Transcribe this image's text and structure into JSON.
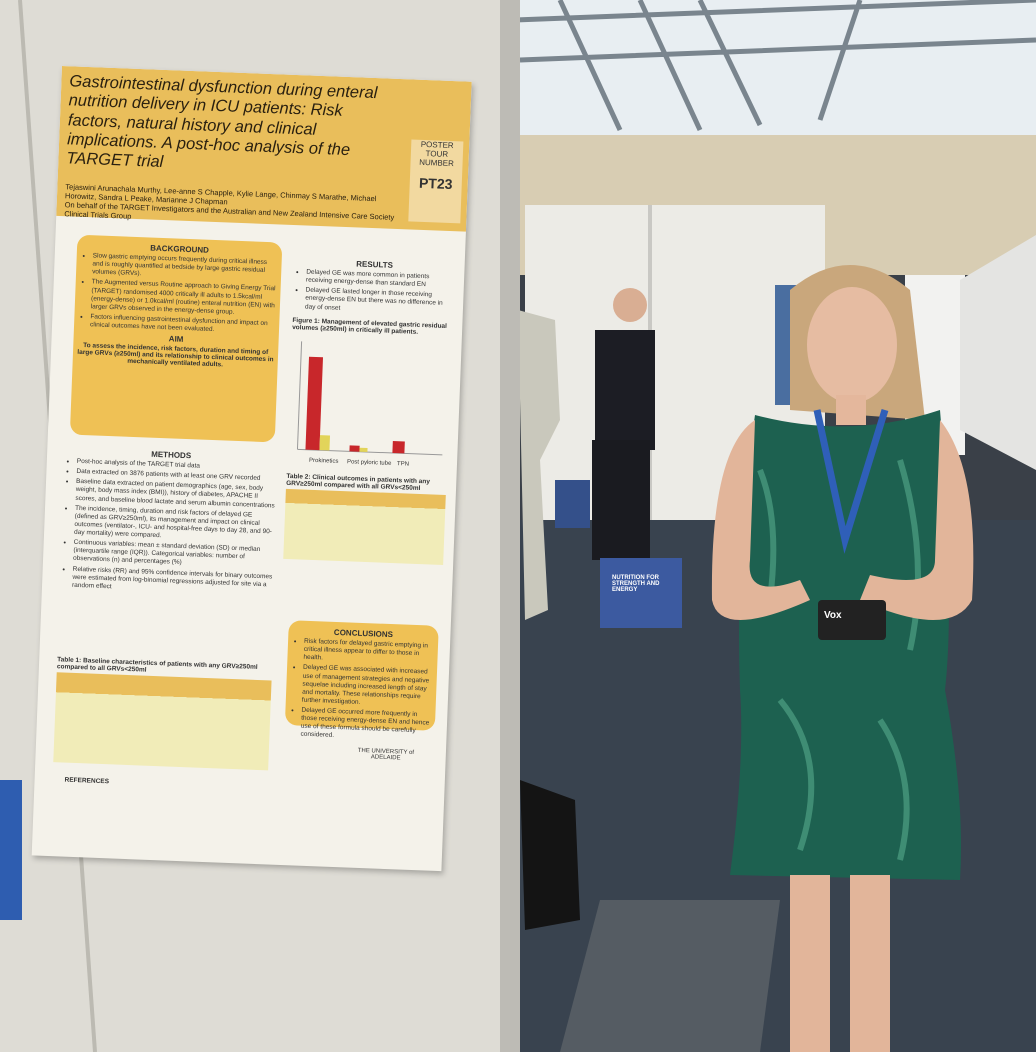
{
  "poster": {
    "title": "Gastrointestinal dysfunction during enteral nutrition delivery in ICU patients: Risk factors, natural history and clinical implications. A post-hoc analysis of the TARGET trial",
    "tour_label": "POSTER TOUR NUMBER",
    "tour_number": "PT23",
    "authors": "Tejaswini Arunachala Murthy, Lee-anne S Chapple, Kylie Lange, Chinmay S Marathe, Michael Horowitz, Sandra L Peake, Marianne J Chapman",
    "on_behalf": "On behalf of the TARGET Investigators and the Australian and New Zealand Intensive Care Society Clinical Trials Group",
    "background": {
      "heading": "BACKGROUND",
      "bullets": [
        "Slow gastric emptying occurs frequently during critical illness and is roughly quantified at bedside by large gastric residual volumes (GRVs).",
        "The Augmented versus Routine approach to Giving Energy Trial (TARGET) randomised 4000 critically ill adults to 1.5kcal/ml (energy-dense) or 1.0kcal/ml (routine) enteral nutrition (EN) with larger GRVs observed in the energy-dense group.",
        "Factors influencing gastrointestinal dysfunction and impact on clinical outcomes have not been evaluated."
      ]
    },
    "aim": {
      "heading": "AIM",
      "text": "To assess the incidence, risk factors, duration and timing of large GRVs (≥250ml) and its relationship to clinical outcomes in mechanically ventilated adults."
    },
    "methods": {
      "heading": "METHODS",
      "bullets": [
        "Post-hoc analysis of the TARGET trial data",
        "Data extracted on 3876 patients with at least one GRV recorded",
        "Baseline data extracted on patient demographics (age, sex, body weight, body mass index (BMI)), history of diabetes, APACHE II scores, and baseline blood lactate and serum albumin concentrations",
        "The incidence, timing, duration and risk factors of delayed GE (defined as GRV≥250ml), its management and impact on clinical outcomes (ventilator-, ICU- and hospital-free days to day 28, and 90-day mortality) were compared.",
        "Continuous variables: mean ± standard deviation (SD) or median (interquartile range (IQR)). Categorical variables: number of observations (n) and percentages (%)",
        "Relative risks (RR) and 95% confidence intervals for binary outcomes were estimated from log-binomial regressions adjusted for site via a random effect"
      ]
    },
    "results": {
      "heading": "RESULTS",
      "bullets": [
        "Delayed GE was more common in patients receiving energy-dense than standard EN",
        "Delayed GE lasted longer in those receiving energy-dense EN but there was no difference in day of onset"
      ]
    },
    "figure_caption": "Figure 1: Management of elevated gastric residual volumes (≥250ml) in critically ill patients.",
    "figure_categories": [
      "Prokinetics",
      "Post pyloric tube",
      "TPN"
    ],
    "table2_caption": "Table 2: Clinical outcomes in patients with any GRV≥250ml compared with all GRVs<250ml",
    "conclusions": {
      "heading": "CONCLUSIONS",
      "bullets": [
        "Risk factors for delayed gastric emptying in critical illness appear to differ to those in health.",
        "Delayed GE was associated with increased use of management strategies and negative sequelae including increased length of stay and mortality. These relationships require further investigation.",
        "Delayed GE occurred more frequently in those receiving energy-dense EN and hence use of these formula should be carefully considered."
      ]
    },
    "table1_caption": "Table 1: Baseline characteristics of patients with any GRV≥250ml compared to all GRVs<250ml",
    "references_heading": "REFERENCES",
    "logo_text": "THE UNIVERSITY of ADELAIDE"
  },
  "booth_box": "NUTRITION FOR STRENGTH AND ENERGY",
  "badge": "Vox"
}
